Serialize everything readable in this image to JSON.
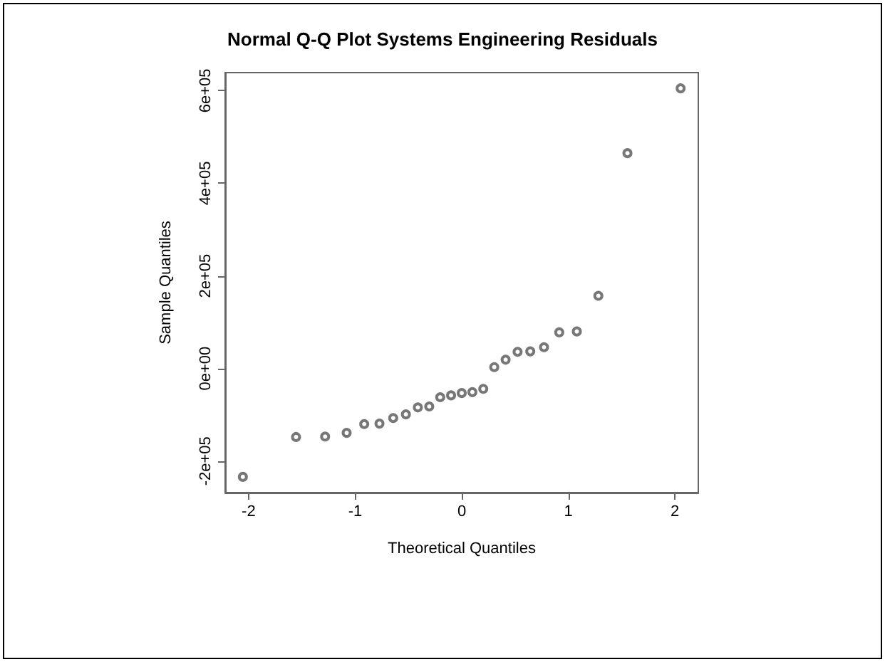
{
  "chart_data": {
    "type": "scatter",
    "title": "Normal Q-Q Plot Systems Engineering Residuals",
    "xlabel": "Theoretical Quantiles",
    "ylabel": "Sample Quantiles",
    "x": [
      -2.054,
      -1.555,
      -1.282,
      -1.08,
      -0.915,
      -0.772,
      -0.643,
      -0.524,
      -0.412,
      -0.305,
      -0.202,
      -0.1,
      0,
      0.1,
      0.202,
      0.305,
      0.412,
      0.524,
      0.643,
      0.772,
      0.915,
      1.08,
      1.282,
      1.555,
      2.054
    ],
    "series": [
      {
        "color": "#555555",
        "values": [
          -234000,
          -148000,
          -147000,
          -139000,
          -120000,
          -119000,
          -107000,
          -99000,
          -84000,
          -82000,
          -62000,
          -58000,
          -53000,
          -51000,
          -44000,
          3000,
          19000,
          36000,
          37000,
          46000,
          78000,
          80000,
          157000,
          465000,
          605000
        ]
      }
    ],
    "xlim": [
      -2.22,
      2.22
    ],
    "ylim": [
      -268000,
      639000
    ],
    "xticks": [
      -2,
      -1,
      0,
      1,
      2
    ],
    "yticks": [
      {
        "value": -200000,
        "label": "-2e+05"
      },
      {
        "value": 0,
        "label": "0e+00"
      },
      {
        "value": 200000,
        "label": "2e+05"
      },
      {
        "value": 400000,
        "label": "4e+05"
      },
      {
        "value": 600000,
        "label": "6e+05"
      }
    ],
    "marker": "circle",
    "grid": false
  }
}
